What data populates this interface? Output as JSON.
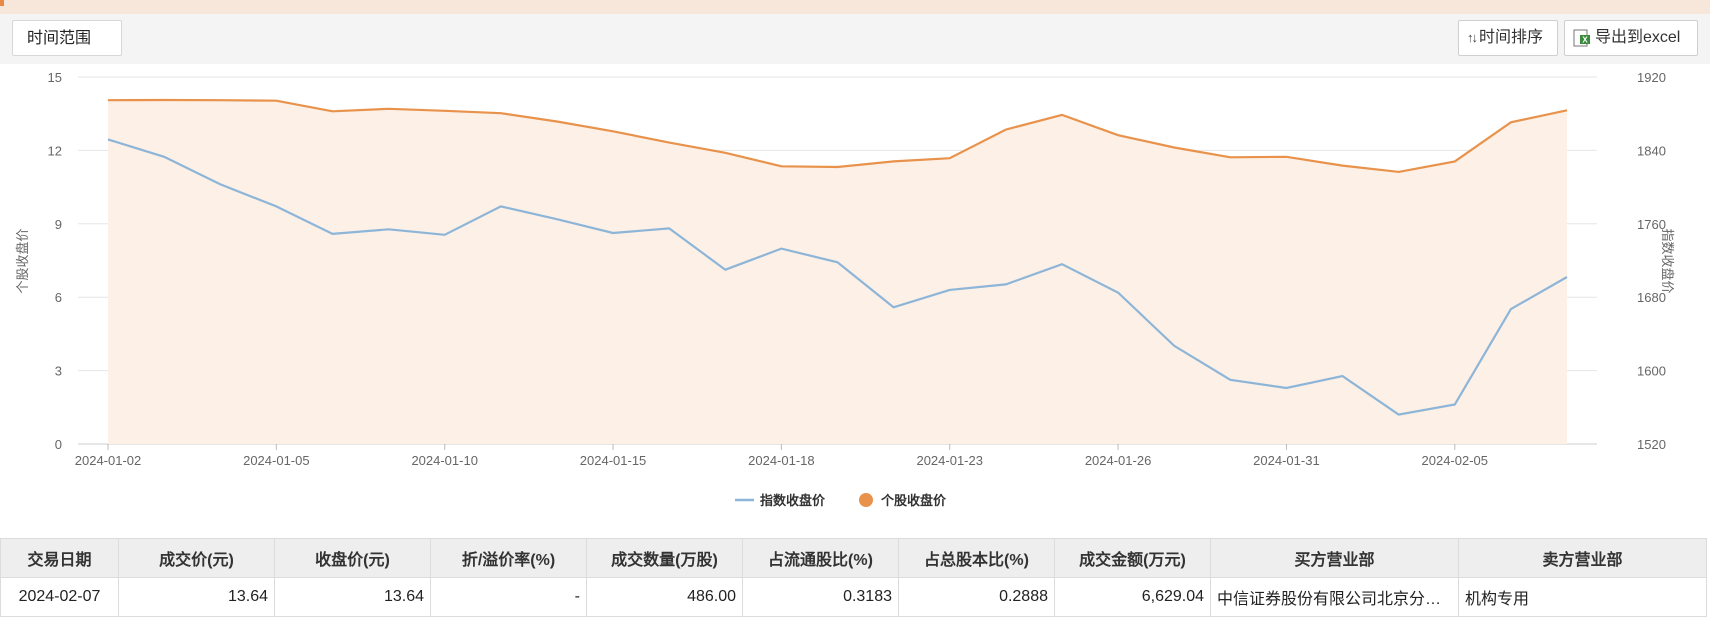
{
  "toolbar": {
    "time_range_label": "时间范围",
    "sort_label": "时间排序",
    "export_label": "导出到excel"
  },
  "colors": {
    "index_line": "#8db5d8",
    "stock_line": "#e8924b",
    "stock_fill": "#fdf0e7",
    "grid": "#e6e6e6",
    "axis_text": "#666666"
  },
  "chart_data": {
    "type": "line",
    "x": [
      "2024-01-02",
      "2024-01-03",
      "2024-01-04",
      "2024-01-05",
      "2024-01-08",
      "2024-01-09",
      "2024-01-10",
      "2024-01-11",
      "2024-01-12",
      "2024-01-15",
      "2024-01-16",
      "2024-01-17",
      "2024-01-18",
      "2024-01-19",
      "2024-01-22",
      "2024-01-23",
      "2024-01-24",
      "2024-01-25",
      "2024-01-26",
      "2024-01-29",
      "2024-01-30",
      "2024-01-31",
      "2024-02-01",
      "2024-02-02",
      "2024-02-05",
      "2024-02-06",
      "2024-02-07"
    ],
    "x_ticks": [
      "2024-01-02",
      "2024-01-05",
      "2024-01-10",
      "2024-01-15",
      "2024-01-18",
      "2024-01-23",
      "2024-01-26",
      "2024-01-31",
      "2024-02-05"
    ],
    "series": [
      {
        "name": "指数收盘价",
        "axis": "right",
        "values": [
          1852,
          1833,
          1803,
          1779,
          1749,
          1754,
          1748,
          1779,
          1765,
          1750,
          1755,
          1710,
          1733,
          1718,
          1669,
          1688,
          1694,
          1716,
          1685,
          1627,
          1590,
          1581,
          1594,
          1552,
          1563,
          1667,
          1702
        ]
      },
      {
        "name": "个股收盘价",
        "axis": "left",
        "fill": true,
        "values": [
          14.05,
          14.06,
          14.05,
          14.03,
          13.6,
          13.7,
          13.62,
          13.52,
          13.18,
          12.78,
          12.32,
          11.9,
          11.35,
          11.32,
          11.55,
          11.68,
          12.85,
          13.45,
          12.62,
          12.12,
          11.72,
          11.74,
          11.38,
          11.12,
          11.55,
          13.15,
          13.64
        ]
      }
    ],
    "y_left": {
      "label": "个股收盘价",
      "range": [
        0,
        15
      ],
      "ticks": [
        0,
        3,
        6,
        9,
        12,
        15
      ]
    },
    "y_right": {
      "label": "指数收盘价",
      "range": [
        1520,
        1920
      ],
      "ticks": [
        1520,
        1600,
        1680,
        1760,
        1840,
        1920
      ]
    },
    "grid": true,
    "legend_position": "bottom-center"
  },
  "table": {
    "headers": [
      "交易日期",
      "成交价(元)",
      "收盘价(元)",
      "折/溢价率(%)",
      "成交数量(万股)",
      "占流通股比(%)",
      "占总股本比(%)",
      "成交金额(万元)",
      "买方营业部",
      "卖方营业部"
    ],
    "rows": [
      [
        "2024-02-07",
        "13.64",
        "13.64",
        "-",
        "486.00",
        "0.3183",
        "0.2888",
        "6,629.04",
        "中信证券股份有限公司北京分公司",
        "机构专用"
      ]
    ]
  }
}
